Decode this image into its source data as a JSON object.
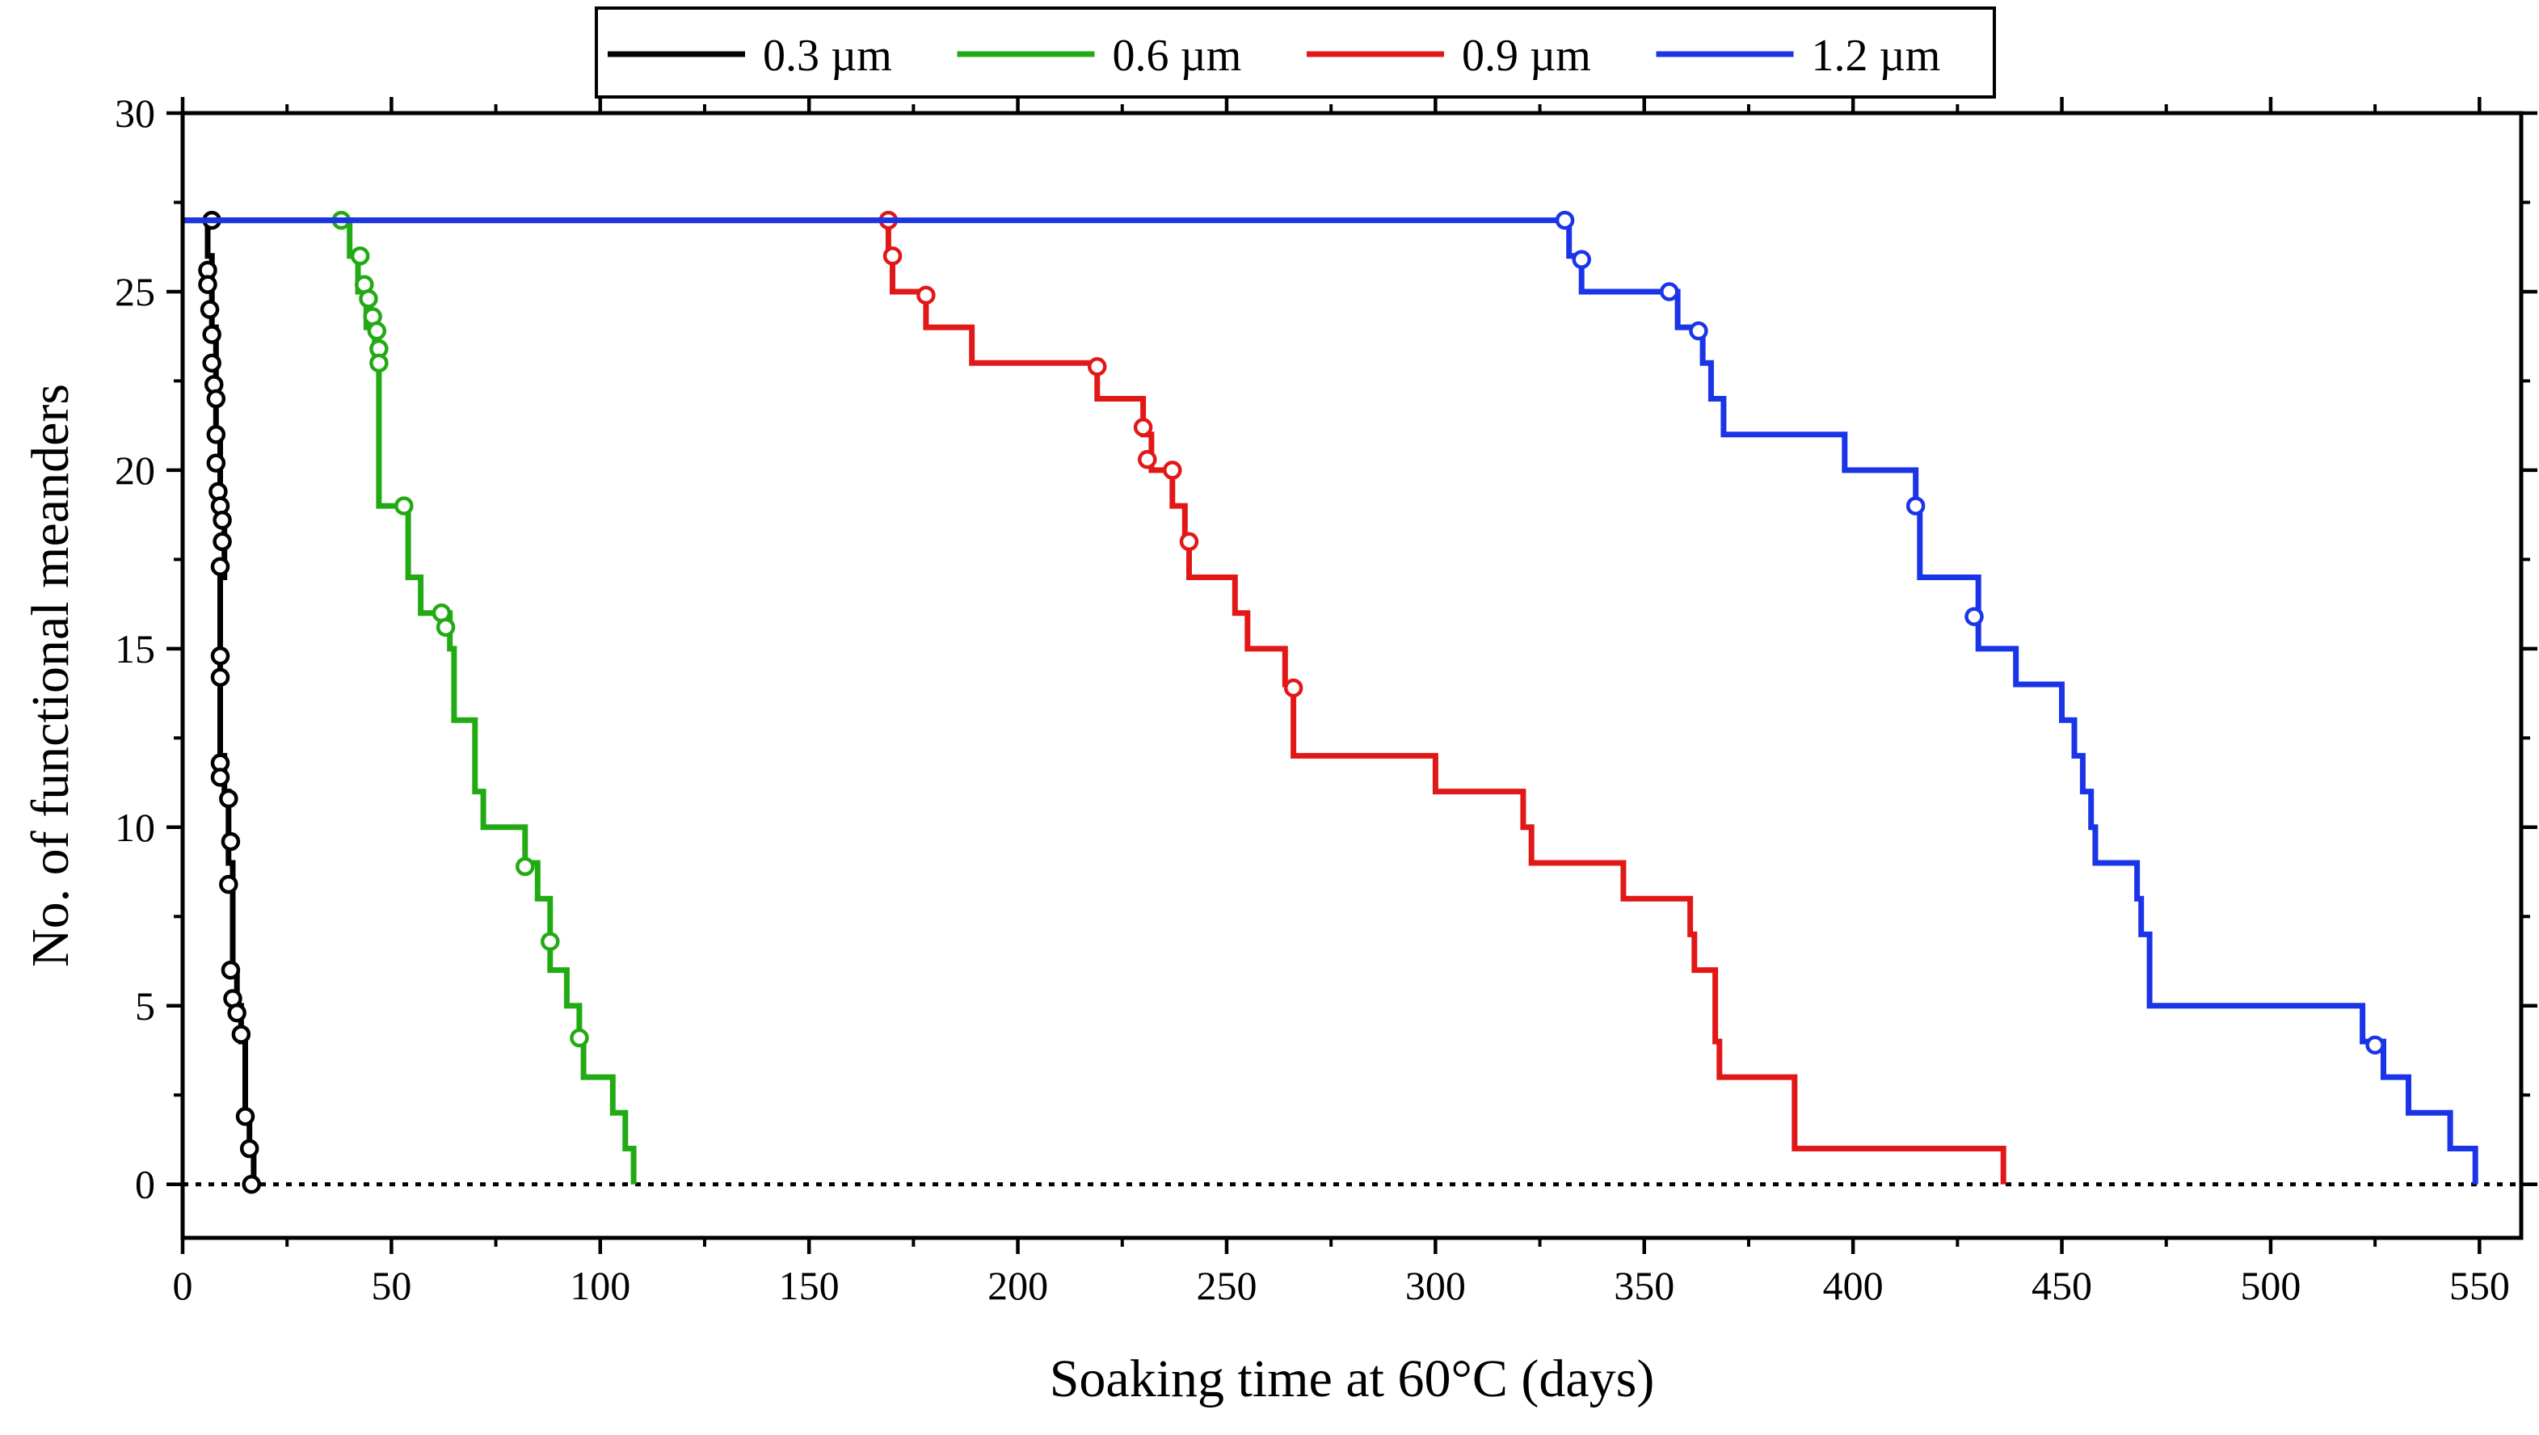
{
  "chart_data": {
    "type": "line",
    "title": "",
    "xlabel": "Soaking time at 60°C (days)",
    "ylabel": "No. of functional meanders",
    "xlim": [
      0,
      560
    ],
    "ylim": [
      -1.5,
      30
    ],
    "x_ticks": [
      0,
      50,
      100,
      150,
      200,
      250,
      300,
      350,
      400,
      450,
      500,
      550
    ],
    "y_ticks": [
      0,
      5,
      10,
      15,
      20,
      25,
      30
    ],
    "x_tick_labels": [
      "0",
      "50",
      "100",
      "150",
      "200",
      "250",
      "300",
      "350",
      "400",
      "450",
      "500",
      "550"
    ],
    "y_tick_labels": [
      "0",
      "5",
      "10",
      "15",
      "20",
      "25",
      "30"
    ],
    "legend_position": "top-center",
    "reference_line": {
      "y": 0,
      "style": "dotted",
      "color": "#000000"
    },
    "series": [
      {
        "name": "0.3 µm",
        "color": "#000000",
        "steps": [
          [
            0,
            27
          ],
          [
            6,
            27
          ],
          [
            6,
            26
          ],
          [
            7,
            25
          ],
          [
            7,
            24
          ],
          [
            8,
            23
          ],
          [
            8,
            22
          ],
          [
            8,
            21
          ],
          [
            9,
            20
          ],
          [
            9,
            19
          ],
          [
            10,
            18
          ],
          [
            10,
            17
          ],
          [
            9,
            17
          ],
          [
            9,
            14
          ],
          [
            9,
            12
          ],
          [
            10,
            11
          ],
          [
            11,
            10
          ],
          [
            11,
            9
          ],
          [
            12,
            6
          ],
          [
            13,
            5
          ],
          [
            14,
            4
          ],
          [
            15,
            2
          ],
          [
            16,
            1
          ],
          [
            17,
            0
          ]
        ],
        "markers": [
          [
            7,
            27
          ],
          [
            6,
            25.6
          ],
          [
            6,
            25.2
          ],
          [
            6.5,
            24.5
          ],
          [
            7,
            23.8
          ],
          [
            7,
            23
          ],
          [
            7.5,
            22.4
          ],
          [
            8,
            22
          ],
          [
            8,
            21
          ],
          [
            8,
            20.2
          ],
          [
            8.5,
            19.4
          ],
          [
            9,
            19
          ],
          [
            9.5,
            18.6
          ],
          [
            9.5,
            18
          ],
          [
            9,
            17.3
          ],
          [
            9,
            14.8
          ],
          [
            9,
            14.2
          ],
          [
            9,
            11.8
          ],
          [
            9,
            11.4
          ],
          [
            11,
            10.8
          ],
          [
            11.5,
            9.6
          ],
          [
            11,
            8.4
          ],
          [
            11.5,
            6
          ],
          [
            12,
            5.2
          ],
          [
            13,
            4.8
          ],
          [
            14,
            4.2
          ],
          [
            15,
            1.9
          ],
          [
            16,
            1
          ],
          [
            16.5,
            0
          ]
        ]
      },
      {
        "name": "0.6 µm",
        "color": "#22aa14",
        "steps": [
          [
            0,
            27
          ],
          [
            38,
            27
          ],
          [
            40,
            26
          ],
          [
            42,
            25
          ],
          [
            44,
            24
          ],
          [
            46,
            23
          ],
          [
            47,
            22
          ],
          [
            47,
            19
          ],
          [
            53,
            19
          ],
          [
            54,
            17
          ],
          [
            57,
            16
          ],
          [
            64,
            15
          ],
          [
            65,
            13
          ],
          [
            69,
            13
          ],
          [
            70,
            11
          ],
          [
            72,
            10
          ],
          [
            81,
            10
          ],
          [
            82,
            9
          ],
          [
            85,
            8
          ],
          [
            88,
            6
          ],
          [
            92,
            5
          ],
          [
            95,
            4
          ],
          [
            96,
            3
          ],
          [
            102,
            3
          ],
          [
            103,
            2
          ],
          [
            106,
            1
          ],
          [
            108,
            0
          ]
        ],
        "markers": [
          [
            38,
            27
          ],
          [
            42.5,
            26
          ],
          [
            43.5,
            25.2
          ],
          [
            44.5,
            24.8
          ],
          [
            45.5,
            24.3
          ],
          [
            46.5,
            23.9
          ],
          [
            47,
            23.4
          ],
          [
            47,
            23
          ],
          [
            53,
            19
          ],
          [
            62,
            16
          ],
          [
            63,
            15.6
          ],
          [
            82,
            8.9
          ],
          [
            88,
            6.8
          ],
          [
            95,
            4.1
          ]
        ]
      },
      {
        "name": "0.9 µm",
        "color": "#e21818",
        "steps": [
          [
            0,
            27
          ],
          [
            169,
            27
          ],
          [
            169,
            26
          ],
          [
            170,
            25
          ],
          [
            177,
            25
          ],
          [
            178,
            24
          ],
          [
            189,
            24
          ],
          [
            189,
            23
          ],
          [
            219,
            23
          ],
          [
            219,
            22
          ],
          [
            230,
            22
          ],
          [
            230,
            21
          ],
          [
            231,
            21
          ],
          [
            232,
            20
          ],
          [
            236,
            20
          ],
          [
            237,
            19
          ],
          [
            240,
            18
          ],
          [
            241,
            17
          ],
          [
            251,
            17
          ],
          [
            252,
            16
          ],
          [
            255,
            15
          ],
          [
            263,
            15
          ],
          [
            264,
            14
          ],
          [
            266,
            13
          ],
          [
            266,
            12
          ],
          [
            300,
            12
          ],
          [
            300,
            11
          ],
          [
            320,
            11
          ],
          [
            321,
            10
          ],
          [
            323,
            9
          ],
          [
            345,
            9
          ],
          [
            345,
            8
          ],
          [
            360,
            8
          ],
          [
            361,
            7
          ],
          [
            362,
            6
          ],
          [
            366,
            6
          ],
          [
            367,
            4
          ],
          [
            368,
            3
          ],
          [
            386,
            3
          ],
          [
            386,
            1
          ],
          [
            436,
            1
          ],
          [
            436,
            0
          ]
        ],
        "markers": [
          [
            169,
            27
          ],
          [
            170,
            26
          ],
          [
            178,
            24.9
          ],
          [
            219,
            22.9
          ],
          [
            230,
            21.2
          ],
          [
            231,
            20.3
          ],
          [
            237,
            20
          ],
          [
            241,
            18
          ],
          [
            266,
            13.9
          ]
        ]
      },
      {
        "name": "1.2 µm",
        "color": "#1a34e8",
        "steps": [
          [
            0,
            27
          ],
          [
            330,
            27
          ],
          [
            332,
            26
          ],
          [
            334,
            26
          ],
          [
            335,
            25
          ],
          [
            356,
            25
          ],
          [
            358,
            24
          ],
          [
            362,
            24
          ],
          [
            364,
            23
          ],
          [
            366,
            22
          ],
          [
            369,
            21
          ],
          [
            398,
            21
          ],
          [
            398,
            20
          ],
          [
            415,
            20
          ],
          [
            415,
            19
          ],
          [
            416,
            17
          ],
          [
            429,
            17
          ],
          [
            430,
            15
          ],
          [
            438,
            15
          ],
          [
            439,
            14
          ],
          [
            449,
            14
          ],
          [
            450,
            13
          ],
          [
            453,
            12
          ],
          [
            455,
            11
          ],
          [
            457,
            10
          ],
          [
            458,
            9
          ],
          [
            467,
            9
          ],
          [
            468,
            8
          ],
          [
            469,
            7
          ],
          [
            471,
            5
          ],
          [
            521,
            5
          ],
          [
            522,
            4
          ],
          [
            527,
            3
          ],
          [
            533,
            3
          ],
          [
            533,
            2
          ],
          [
            543,
            2
          ],
          [
            543,
            1
          ],
          [
            549,
            1
          ],
          [
            549,
            0
          ]
        ],
        "markers": [
          [
            331,
            27
          ],
          [
            335,
            25.9
          ],
          [
            356,
            25
          ],
          [
            363,
            23.9
          ],
          [
            415,
            19
          ],
          [
            429,
            15.9
          ],
          [
            525,
            3.9
          ]
        ]
      }
    ]
  }
}
